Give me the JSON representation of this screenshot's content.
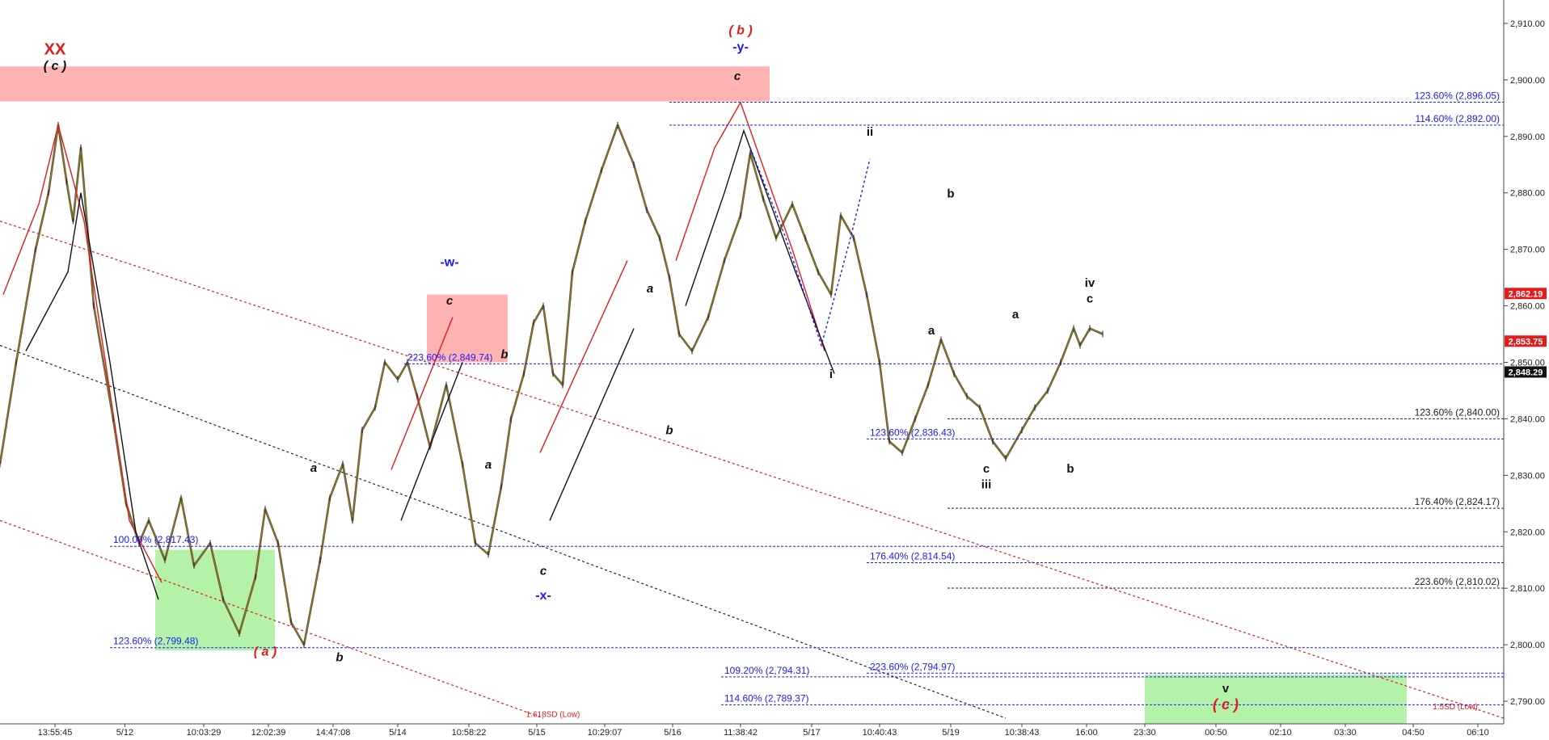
{
  "chart_data": {
    "type": "line",
    "title": "",
    "xlabel": "",
    "ylabel": "",
    "ylim": [
      2786,
      2913
    ],
    "y_ticks": [
      2790,
      2800,
      2810,
      2820,
      2830,
      2840,
      2850,
      2860,
      2870,
      2880,
      2890,
      2900,
      2910
    ],
    "y_tick_labels": [
      "2,790.00",
      "2,800.00",
      "2,810.00",
      "2,820.00",
      "2,830.00",
      "2,840.00",
      "2,850.00",
      "2,860.00",
      "2,870.00",
      "2,880.00",
      "2,890.00",
      "2,900.00",
      "2,910.00"
    ],
    "x_tick_labels": [
      "13:55:45",
      "5/12",
      "10:03:29",
      "12:02:39",
      "14:47:08",
      "5/14",
      "10:58:22",
      "5/15",
      "10:29:07",
      "5/16",
      "11:38:42",
      "5/17",
      "10:40:43",
      "5/19",
      "10:38:43",
      "16:00",
      "23:30",
      "00:50",
      "02:10",
      "03:30",
      "04:50",
      "06:10"
    ],
    "x_tick_index": [
      0,
      1.08,
      2.3,
      3.3,
      4.3,
      5.3,
      6.4,
      7.45,
      8.5,
      9.55,
      10.6,
      11.7,
      12.75,
      13.85,
      14.95,
      15.95,
      16.85,
      17.95,
      18.95,
      19.95,
      21.0,
      22.0
    ],
    "x_range": [
      -0.85,
      22.4
    ],
    "price_tags": [
      {
        "label": "2,862.19",
        "value": 2862.19,
        "color": "#e31b1b"
      },
      {
        "label": "2,853.75",
        "value": 2853.75,
        "color": "#e31b1b"
      },
      {
        "label": "2,848.29",
        "value": 2848.29,
        "color": "#111111"
      }
    ],
    "series": [
      {
        "x": [
          -0.85,
          -0.6,
          -0.3,
          -0.1,
          0.05,
          0.18,
          0.28,
          0.4,
          0.6,
          0.9,
          1.1,
          1.3,
          1.45,
          1.7,
          1.95,
          2.15,
          2.4,
          2.6,
          2.85,
          3.1,
          3.25,
          3.45,
          3.65,
          3.85,
          4.1,
          4.25,
          4.45,
          4.6,
          4.75,
          4.95,
          5.1,
          5.3,
          5.45,
          5.6,
          5.8,
          6.05,
          6.3,
          6.5,
          6.7,
          6.9,
          7.05,
          7.25,
          7.4,
          7.55,
          7.7,
          7.85,
          8.0,
          8.2,
          8.45,
          8.7,
          8.95,
          9.15,
          9.35,
          9.5,
          9.65,
          9.85,
          10.1,
          10.35,
          10.6,
          10.75,
          10.95,
          11.15,
          11.4,
          11.6,
          11.8,
          12.0,
          12.15,
          12.35,
          12.55,
          12.75,
          12.9,
          13.1,
          13.3,
          13.5,
          13.7,
          13.9,
          14.1,
          14.3,
          14.5,
          14.7,
          14.95,
          15.15,
          15.35,
          15.55,
          15.75,
          15.85,
          16.0,
          16.2
        ],
        "values": [
          2832,
          2850,
          2870,
          2880,
          2892,
          2882,
          2875,
          2888,
          2860,
          2840,
          2825,
          2818,
          2822,
          2815,
          2826,
          2814,
          2818,
          2808,
          2802,
          2812,
          2824,
          2818,
          2804,
          2800,
          2815,
          2826,
          2832,
          2822,
          2838,
          2842,
          2850,
          2847,
          2850,
          2844,
          2835,
          2846,
          2832,
          2818,
          2816,
          2828,
          2840,
          2848,
          2857,
          2860,
          2848,
          2846,
          2866,
          2875,
          2884,
          2892,
          2885,
          2877,
          2872,
          2865,
          2855,
          2852,
          2858,
          2868,
          2876,
          2887,
          2879,
          2872,
          2878,
          2872,
          2866,
          2862,
          2876,
          2872,
          2862,
          2850,
          2836,
          2834,
          2840,
          2846,
          2854,
          2848,
          2844,
          2842,
          2836,
          2833,
          2838,
          2842,
          2845,
          2850,
          2856,
          2853,
          2856,
          2855
        ]
      }
    ],
    "fib_levels": [
      {
        "label": "123.60% (2,896.05)",
        "value": 2896.05,
        "x0": 9.5,
        "x1": 22.4,
        "color": "#1a1aff",
        "style": "dash",
        "text_side": "right"
      },
      {
        "label": "114.60% (2,892.00)",
        "value": 2892.0,
        "x0": 9.5,
        "x1": 22.4,
        "color": "#1a1aff",
        "style": "dash",
        "text_side": "right"
      },
      {
        "label": "223.60% (2,849.74)",
        "value": 2849.74,
        "x0": 5.4,
        "x1": 22.4,
        "color": "#1a1aff",
        "style": "dash",
        "text_side": "left"
      },
      {
        "label": "123.60% (2,840.00)",
        "value": 2840.0,
        "x0": 13.8,
        "x1": 22.4,
        "color": "#222222",
        "style": "dash",
        "text_side": "right"
      },
      {
        "label": "123.60% (2,836.43)",
        "value": 2836.43,
        "x0": 12.55,
        "x1": 22.4,
        "color": "#1a1aff",
        "style": "dash",
        "text_side": "left"
      },
      {
        "label": "176.40% (2,824.17)",
        "value": 2824.17,
        "x0": 13.8,
        "x1": 22.4,
        "color": "#222222",
        "style": "dash",
        "text_side": "right"
      },
      {
        "label": "100.00% (2,817.43)",
        "value": 2817.43,
        "x0": 0.85,
        "x1": 22.4,
        "color": "#1a1aff",
        "style": "dash",
        "text_side": "left"
      },
      {
        "label": "176.40% (2,814.54)",
        "value": 2814.54,
        "x0": 12.55,
        "x1": 22.4,
        "color": "#1a1aff",
        "style": "dash",
        "text_side": "left"
      },
      {
        "label": "223.60% (2,810.02)",
        "value": 2810.02,
        "x0": 13.8,
        "x1": 22.4,
        "color": "#222222",
        "style": "dash",
        "text_side": "right"
      },
      {
        "label": "123.60% (2,799.48)",
        "value": 2799.48,
        "x0": 0.85,
        "x1": 22.4,
        "color": "#1a1aff",
        "style": "dash",
        "text_side": "left"
      },
      {
        "label": "109.20% (2,794.31)",
        "value": 2794.31,
        "x0": 10.3,
        "x1": 22.4,
        "color": "#1a1aff",
        "style": "dash",
        "text_side": "left"
      },
      {
        "label": "223.60% (2,794.97)",
        "value": 2794.97,
        "x0": 12.55,
        "x1": 22.4,
        "color": "#1a1aff",
        "style": "dash",
        "text_side": "left"
      },
      {
        "label": "114.60% (2,789.37)",
        "value": 2789.37,
        "x0": 10.3,
        "x1": 22.4,
        "color": "#1a1aff",
        "style": "dash",
        "text_side": "left"
      }
    ],
    "zones": [
      {
        "x0": -0.85,
        "x1": 11.05,
        "y0": 2896.2,
        "y1": 2902.4,
        "color": "#ffb3b3"
      },
      {
        "x0": 5.75,
        "x1": 7.0,
        "y0": 2850.0,
        "y1": 2862.0,
        "color": "#ffb3b3"
      },
      {
        "x0": 1.55,
        "x1": 3.4,
        "y0": 2799.0,
        "y1": 2816.8,
        "color": "#b3f2a8"
      },
      {
        "x0": 16.85,
        "x1": 20.9,
        "y0": 2786.0,
        "y1": 2794.7,
        "color": "#b3f2a8"
      }
    ],
    "channel_lines": [
      {
        "points": [
          [
            -0.85,
            2875
          ],
          [
            22.4,
            2787
          ]
        ],
        "color": "#e31b1b"
      },
      {
        "points": [
          [
            -0.85,
            2822
          ],
          [
            7.55,
            2787
          ]
        ],
        "color": "#e31b1b"
      },
      {
        "points": [
          [
            -0.85,
            2853
          ],
          [
            14.7,
            2787
          ]
        ],
        "color": "#222222"
      }
    ],
    "channel_labels": [
      {
        "text": "1.618SD (Low)",
        "x": 7.7,
        "y": 2787.2,
        "color": "#e31b1b"
      },
      {
        "text": "1.5SD (Low)",
        "x": 21.65,
        "y": 2788.6,
        "color": "#e31b1b"
      }
    ],
    "wave_lines": [
      {
        "points": [
          [
            -0.8,
            2862
          ],
          [
            -0.25,
            2878
          ],
          [
            0.05,
            2892
          ],
          [
            0.45,
            2875
          ],
          [
            1.15,
            2822
          ],
          [
            1.65,
            2811
          ]
        ],
        "color": "#e31b1b"
      },
      {
        "points": [
          [
            -0.45,
            2852
          ],
          [
            0.2,
            2866
          ],
          [
            0.4,
            2880
          ],
          [
            0.85,
            2850
          ],
          [
            1.25,
            2820
          ],
          [
            1.6,
            2808
          ]
        ],
        "color": "#111111"
      },
      {
        "points": [
          [
            5.2,
            2831
          ],
          [
            6.15,
            2858
          ]
        ],
        "color": "#e31b1b"
      },
      {
        "points": [
          [
            5.35,
            2822
          ],
          [
            6.3,
            2850
          ]
        ],
        "color": "#111111"
      },
      {
        "points": [
          [
            7.5,
            2834
          ],
          [
            8.85,
            2868
          ]
        ],
        "color": "#e31b1b"
      },
      {
        "points": [
          [
            7.65,
            2822
          ],
          [
            8.95,
            2856
          ]
        ],
        "color": "#111111"
      },
      {
        "points": [
          [
            9.6,
            2868
          ],
          [
            10.2,
            2888
          ],
          [
            10.6,
            2896
          ],
          [
            11.4,
            2870
          ],
          [
            11.9,
            2852
          ]
        ],
        "color": "#e31b1b"
      },
      {
        "points": [
          [
            9.75,
            2860
          ],
          [
            10.35,
            2880
          ],
          [
            10.65,
            2891
          ],
          [
            11.45,
            2866
          ],
          [
            12.05,
            2848
          ]
        ],
        "color": "#111111"
      },
      {
        "points": [
          [
            10.75,
            2888
          ],
          [
            11.3,
            2872
          ],
          [
            11.85,
            2853
          ],
          [
            12.3,
            2872
          ],
          [
            12.6,
            2886
          ]
        ],
        "color": "#1a1aff",
        "dash": true
      }
    ],
    "wave_labels": [
      {
        "text": "XX",
        "x": 0.0,
        "y": 2904.5,
        "color": "#e31b1b",
        "italic": false,
        "size": 20
      },
      {
        "text": "( c )",
        "x": 0.0,
        "y": 2901.8,
        "color": "#111111",
        "italic": true,
        "size": 16
      },
      {
        "text": "( b )",
        "x": 10.6,
        "y": 2908.1,
        "color": "#e31b1b",
        "italic": true,
        "size": 16
      },
      {
        "text": "-y-",
        "x": 10.6,
        "y": 2905.1,
        "color": "#1a1aff",
        "italic": false,
        "size": 16
      },
      {
        "text": "c",
        "x": 10.55,
        "y": 2900.0,
        "color": "#111111",
        "italic": true,
        "size": 15
      },
      {
        "text": "ii",
        "x": 12.6,
        "y": 2890.1,
        "color": "#111111",
        "italic": false,
        "size": 15
      },
      {
        "text": "b",
        "x": 13.85,
        "y": 2879.2,
        "color": "#111111",
        "italic": false,
        "size": 15
      },
      {
        "text": "-w-",
        "x": 6.1,
        "y": 2867.0,
        "color": "#1a1aff",
        "italic": false,
        "size": 16
      },
      {
        "text": "c",
        "x": 6.1,
        "y": 2860.2,
        "color": "#111111",
        "italic": true,
        "size": 15
      },
      {
        "text": "a",
        "x": 9.2,
        "y": 2862.4,
        "color": "#111111",
        "italic": true,
        "size": 15
      },
      {
        "text": "b",
        "x": 6.95,
        "y": 2850.7,
        "color": "#111111",
        "italic": true,
        "size": 15
      },
      {
        "text": "iv",
        "x": 16.0,
        "y": 2863.4,
        "color": "#111111",
        "italic": false,
        "size": 15
      },
      {
        "text": "c",
        "x": 16.0,
        "y": 2860.6,
        "color": "#111111",
        "italic": false,
        "size": 15
      },
      {
        "text": "a",
        "x": 14.85,
        "y": 2857.8,
        "color": "#111111",
        "italic": false,
        "size": 15
      },
      {
        "text": "a",
        "x": 13.55,
        "y": 2854.9,
        "color": "#111111",
        "italic": false,
        "size": 15
      },
      {
        "text": "i",
        "x": 12.0,
        "y": 2847.2,
        "color": "#111111",
        "italic": false,
        "size": 15
      },
      {
        "text": "b",
        "x": 9.5,
        "y": 2837.3,
        "color": "#111111",
        "italic": true,
        "size": 15
      },
      {
        "text": "a",
        "x": 6.7,
        "y": 2831.2,
        "color": "#111111",
        "italic": true,
        "size": 15
      },
      {
        "text": "a",
        "x": 4.0,
        "y": 2830.6,
        "color": "#111111",
        "italic": true,
        "size": 15
      },
      {
        "text": "c",
        "x": 14.4,
        "y": 2830.5,
        "color": "#111111",
        "italic": false,
        "size": 15
      },
      {
        "text": "iii",
        "x": 14.4,
        "y": 2827.7,
        "color": "#111111",
        "italic": false,
        "size": 15
      },
      {
        "text": "b",
        "x": 15.7,
        "y": 2830.5,
        "color": "#111111",
        "italic": false,
        "size": 15
      },
      {
        "text": "c",
        "x": 7.55,
        "y": 2812.4,
        "color": "#111111",
        "italic": true,
        "size": 15
      },
      {
        "text": "-x-",
        "x": 7.55,
        "y": 2808.0,
        "color": "#1a1aff",
        "italic": false,
        "size": 16
      },
      {
        "text": "( a )",
        "x": 3.25,
        "y": 2798.1,
        "color": "#e31b1b",
        "italic": true,
        "size": 16
      },
      {
        "text": "b",
        "x": 4.4,
        "y": 2797.1,
        "color": "#111111",
        "italic": true,
        "size": 15
      },
      {
        "text": "v",
        "x": 18.1,
        "y": 2791.6,
        "color": "#111111",
        "italic": false,
        "size": 15
      },
      {
        "text": "( c )",
        "x": 18.1,
        "y": 2788.6,
        "color": "#e31b1b",
        "italic": true,
        "size": 18
      }
    ]
  }
}
